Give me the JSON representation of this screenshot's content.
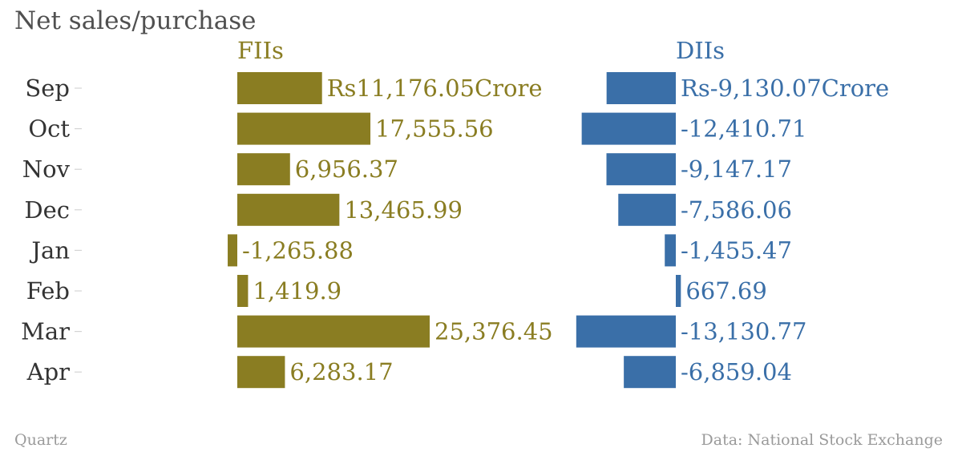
{
  "chart_data": {
    "type": "bar",
    "orientation": "horizontal",
    "title": "Net sales/purchase",
    "categories": [
      "Sep",
      "Oct",
      "Nov",
      "Dec",
      "Jan",
      "Feb",
      "Mar",
      "Apr"
    ],
    "series": [
      {
        "name": "FIIs",
        "color": "#8a7d22",
        "values": [
          11176.05,
          17555.56,
          6956.37,
          13465.99,
          -1265.88,
          1419.9,
          25376.45,
          6283.17
        ],
        "labels": [
          "Rs11,176.05Crore",
          "17,555.56",
          "6,956.37",
          "13,465.99",
          "-1,265.88",
          "1,419.9",
          "25,376.45",
          "6,283.17"
        ]
      },
      {
        "name": "DIIs",
        "color": "#3a6fa8",
        "values": [
          -9130.07,
          -12410.71,
          -9147.17,
          -7586.06,
          -1455.47,
          667.69,
          -13130.77,
          -6859.04
        ],
        "labels": [
          "Rs-9,130.07Crore",
          "-12,410.71",
          "-9,147.17",
          "-7,586.06",
          "-1,455.47",
          "667.69",
          "-13,130.77",
          "-6,859.04"
        ]
      }
    ],
    "grid": false,
    "legend": "panel titles above each column"
  },
  "footer": {
    "source_left": "Quartz",
    "source_right": "Data: National Stock Exchange"
  }
}
